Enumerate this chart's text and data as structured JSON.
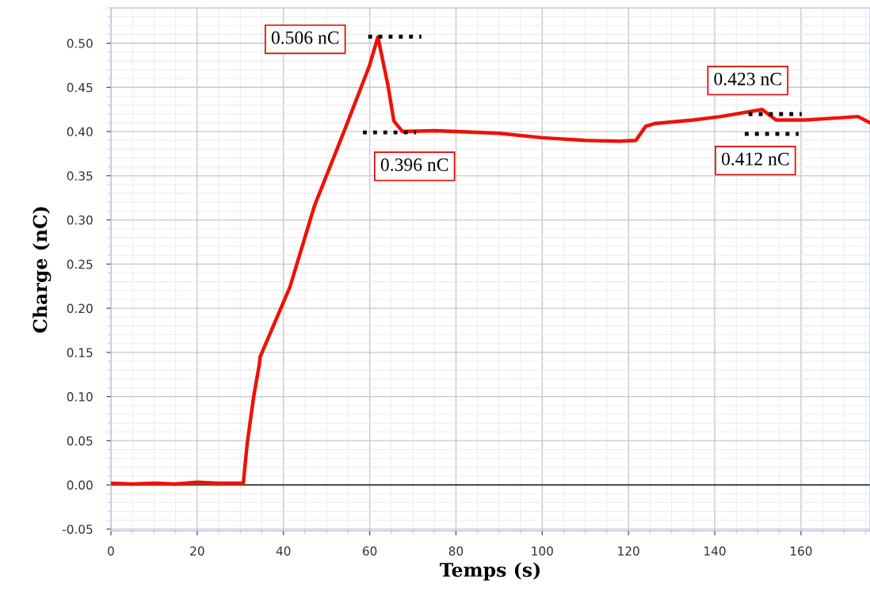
{
  "chart_data": {
    "type": "line",
    "xlabel": "Temps (s)",
    "ylabel": "Charge (nC)",
    "xlim": [
      0,
      176
    ],
    "ylim": [
      -0.052,
      0.54
    ],
    "xticks": [
      0,
      20,
      40,
      60,
      80,
      100,
      120,
      140,
      160
    ],
    "yticks": [
      {
        "value": -0.05,
        "label": "-0.05"
      },
      {
        "value": 0,
        "label": "0.00"
      },
      {
        "value": 0.05,
        "label": "0.05"
      },
      {
        "value": 0.1,
        "label": "0.10"
      },
      {
        "value": 0.15,
        "label": "0.15"
      },
      {
        "value": 0.2,
        "label": "0.20"
      },
      {
        "value": 0.25,
        "label": "0.25"
      },
      {
        "value": 0.3,
        "label": "0.30"
      },
      {
        "value": 0.35,
        "label": "0.35"
      },
      {
        "value": 0.4,
        "label": "0.40"
      },
      {
        "value": 0.45,
        "label": "0.45"
      },
      {
        "value": 0.5,
        "label": "0.50"
      }
    ],
    "grid": true,
    "legend": false,
    "marker": "none",
    "line_style": "solid",
    "ref_lines": [
      {
        "axis": "y",
        "value": 0,
        "color": "#555555"
      }
    ],
    "series": [
      {
        "color": "#ee1100",
        "x": [
          0,
          5,
          10,
          15,
          20,
          25,
          30.7,
          31.6,
          33.1,
          34.4,
          34.6,
          36.6,
          41.5,
          47.2,
          54.2,
          59.9,
          61.9,
          64.2,
          65.6,
          67.6,
          75,
          80,
          90,
          100,
          110,
          118,
          121.7,
          124,
          126,
          135,
          141.4,
          143.8,
          151,
          154.2,
          160.8,
          167,
          173.2,
          176
        ],
        "values": [
          0.002,
          0.001,
          0.002,
          0.001,
          0.003,
          0.002,
          0.002,
          0.047,
          0.1,
          0.136,
          0.145,
          0.168,
          0.224,
          0.316,
          0.402,
          0.474,
          0.507,
          0.453,
          0.412,
          0.4,
          0.401,
          0.4,
          0.398,
          0.393,
          0.39,
          0.389,
          0.39,
          0.406,
          0.409,
          0.413,
          0.417,
          0.419,
          0.425,
          0.413,
          0.413,
          0.415,
          0.417,
          0.41
        ]
      }
    ],
    "annotations": [
      "0.506 nC",
      "0.396 nC",
      "0.423 nC",
      "0.412 nC"
    ]
  }
}
